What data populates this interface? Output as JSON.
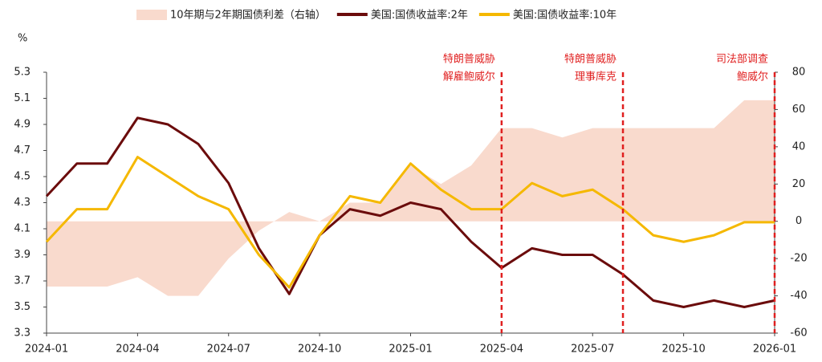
{
  "chart_data": {
    "type": "line",
    "y_unit": "%",
    "x": [
      "2024-01",
      "2024-02",
      "2024-03",
      "2024-04",
      "2024-05",
      "2024-06",
      "2024-07",
      "2024-08",
      "2024-09",
      "2024-10",
      "2024-11",
      "2024-12",
      "2025-01",
      "2025-02",
      "2025-03",
      "2025-04",
      "2025-05",
      "2025-06",
      "2025-07",
      "2025-08",
      "2025-09",
      "2025-10",
      "2025-11",
      "2025-12",
      "2026-01"
    ],
    "xticks": [
      "2024-01",
      "2024-04",
      "2024-07",
      "2024-10",
      "2025-01",
      "2025-04",
      "2025-07",
      "2025-10",
      "2026-01"
    ],
    "ylim": [
      3.3,
      5.3
    ],
    "yticks": [
      3.3,
      3.5,
      3.7,
      3.9,
      4.1,
      4.3,
      4.5,
      4.7,
      4.9,
      5.1,
      5.3
    ],
    "y2lim": [
      -60,
      80
    ],
    "y2ticks": [
      -60,
      -40,
      -20,
      0,
      20,
      40,
      60,
      80
    ],
    "series": [
      {
        "name": "10年期与2年期国债利差（右轴）",
        "style": "area",
        "axis": "y2",
        "color": "#f9dacd",
        "values": [
          -35,
          -35,
          -35,
          -30,
          -40,
          -40,
          -20,
          -5,
          5,
          0,
          10,
          10,
          30,
          20,
          30,
          50,
          50,
          45,
          50,
          50,
          50,
          50,
          50,
          65,
          65
        ]
      },
      {
        "name": "美国:国债收益率:2年",
        "style": "line",
        "color": "#6b0c0c",
        "values": [
          4.35,
          4.6,
          4.6,
          4.95,
          4.9,
          4.75,
          4.45,
          3.95,
          3.6,
          4.05,
          4.25,
          4.2,
          4.3,
          4.25,
          4.0,
          3.8,
          3.95,
          3.9,
          3.9,
          3.75,
          3.55,
          3.5,
          3.55,
          3.5,
          3.55
        ]
      },
      {
        "name": "美国:国债收益率:10年",
        "style": "line",
        "color": "#f5b800",
        "values": [
          4.0,
          4.25,
          4.25,
          4.65,
          4.5,
          4.35,
          4.25,
          3.9,
          3.65,
          4.05,
          4.35,
          4.3,
          4.6,
          4.4,
          4.25,
          4.25,
          4.45,
          4.35,
          4.4,
          4.25,
          4.05,
          4.0,
          4.05,
          4.15,
          4.15
        ]
      }
    ],
    "annotations": [
      {
        "x": "2025-04",
        "lines": [
          "特朗普威胁",
          "解雇鲍威尔"
        ]
      },
      {
        "x": "2025-08",
        "lines": [
          "特朗普威胁",
          "理事库克"
        ]
      },
      {
        "x": "2026-01",
        "lines": [
          "司法部调查",
          "鲍威尔"
        ]
      }
    ]
  }
}
